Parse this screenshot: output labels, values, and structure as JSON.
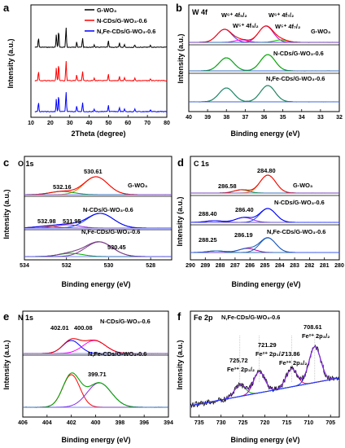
{
  "chart_data": [
    {
      "panel": "a",
      "type": "line",
      "xlabel": "2Theta (degree)",
      "ylabel": "Intensity (a.u.)",
      "xlim": [
        10,
        80
      ],
      "xticks": [
        "10",
        "20",
        "30",
        "40",
        "50",
        "60",
        "70",
        "80"
      ],
      "legend_position": "top-right",
      "series": [
        {
          "name": "G-WO₃",
          "color": "#000000",
          "peaks": [
            [
              13.9,
              0.45
            ],
            [
              23.1,
              0.62
            ],
            [
              24.3,
              0.82
            ],
            [
              28.1,
              0.95
            ],
            [
              33.6,
              0.28
            ],
            [
              36.6,
              0.45
            ],
            [
              42.6,
              0.12
            ],
            [
              49.9,
              0.32
            ],
            [
              55.6,
              0.2
            ],
            [
              58.2,
              0.14
            ],
            [
              63.5,
              0.12
            ],
            [
              71.6,
              0.1
            ]
          ]
        },
        {
          "name": "N-CDs/G-WO₃-0.6",
          "color": "#ff0000",
          "peaks": [
            [
              13.9,
              0.45
            ],
            [
              23.1,
              0.62
            ],
            [
              24.3,
              0.82
            ],
            [
              28.1,
              0.95
            ],
            [
              33.6,
              0.28
            ],
            [
              36.6,
              0.45
            ],
            [
              42.6,
              0.12
            ],
            [
              49.9,
              0.32
            ],
            [
              55.6,
              0.2
            ],
            [
              58.2,
              0.14
            ],
            [
              63.5,
              0.12
            ],
            [
              71.6,
              0.1
            ]
          ]
        },
        {
          "name": "N,Fe-CDs/G-WO₃-0.6",
          "color": "#0000ff",
          "peaks": [
            [
              13.9,
              0.45
            ],
            [
              23.1,
              0.62
            ],
            [
              24.3,
              0.82
            ],
            [
              28.1,
              0.95
            ],
            [
              33.6,
              0.28
            ],
            [
              36.6,
              0.45
            ],
            [
              42.6,
              0.12
            ],
            [
              49.9,
              0.32
            ],
            [
              55.6,
              0.2
            ],
            [
              58.2,
              0.14
            ],
            [
              63.5,
              0.12
            ],
            [
              71.6,
              0.1
            ]
          ]
        }
      ]
    },
    {
      "panel": "b",
      "type": "line",
      "title": "W 4f",
      "xlabel": "Binding energy (eV)",
      "ylabel": "Intensity (a.u.)",
      "xlim": [
        40,
        32
      ],
      "xticks": [
        "40",
        "39",
        "38",
        "37",
        "36",
        "35",
        "34",
        "33",
        "32"
      ],
      "sample_labels": [
        "G-WO₃",
        "N-CDs/G-WO₃-0.6",
        "N,Fe-CDs/G-WO₃-0.6"
      ],
      "peak_labels": [
        "W⁶⁺ 4f₅/₂",
        "W⁵⁺ 4f₅/₂",
        "W⁶⁺ 4f₇/₂",
        "W⁵⁺ 4f₇/₂"
      ],
      "peak_positions_eV": [
        38.1,
        37.2,
        35.9,
        35.1
      ]
    },
    {
      "panel": "c",
      "type": "line",
      "title": "O 1s",
      "xlabel": "Binding energy (eV)",
      "ylabel": "Intensity (a.u.)",
      "xlim": [
        534,
        527
      ],
      "xticks": [
        "534",
        "532",
        "530",
        "528"
      ],
      "sample_labels": [
        "G-WO₃",
        "N-CDs/G-WO₃-0.6",
        "N,Fe-CDs/G-WO₃-0.6"
      ],
      "peak_labels": [
        "530.61",
        "532.16",
        "532.98",
        "531.95",
        "530.45"
      ]
    },
    {
      "panel": "d",
      "type": "line",
      "title": "C 1s",
      "xlabel": "Binding energy (eV)",
      "ylabel": "Intensity (a.u.)",
      "xlim": [
        290,
        280
      ],
      "xticks": [
        "290",
        "289",
        "288",
        "287",
        "286",
        "285",
        "284",
        "283",
        "282",
        "281",
        "280"
      ],
      "sample_labels": [
        "G-WO₃",
        "N-CDs/G-WO₃-0.6",
        "N,Fe-CDs/G-WO₃-0.6"
      ],
      "peak_labels": [
        "284.80",
        "286.58",
        "288.40",
        "286.40",
        "288.25",
        "286.19"
      ]
    },
    {
      "panel": "e",
      "type": "line",
      "title": "N 1s",
      "xlabel": "Binding energy (eV)",
      "ylabel": "Intensity (a.u.)",
      "xlim": [
        406,
        394
      ],
      "xticks": [
        "406",
        "404",
        "402",
        "400",
        "398",
        "396",
        "394"
      ],
      "sample_labels": [
        "N-CDs/G-WO₃-0.6",
        "N,Fe-CDs/G-WO₃-0.6"
      ],
      "peak_labels": [
        "402.01",
        "400.08",
        "399.71"
      ]
    },
    {
      "panel": "f",
      "type": "line",
      "title": "Fe 2p",
      "xlabel": "Binding energy (eV)",
      "ylabel": "Intensity (a.u.)",
      "xlim": [
        737,
        703
      ],
      "xticks": [
        "735",
        "730",
        "725",
        "720",
        "715",
        "710",
        "705"
      ],
      "sample_labels": [
        "N,Fe-CDs/G-WO₃-0.6"
      ],
      "peak_labels": [
        "708.61",
        "721.29",
        "725.72",
        "713.86"
      ],
      "peak_species": [
        "Fe²⁺ 2p₃/₂",
        "Fe²⁺ 2p₁/₂",
        "Fe³⁺ 2p₁/₂",
        "Fe³⁺ 2p₃/₂"
      ]
    }
  ],
  "labels": {
    "panel_a": "a",
    "panel_b": "b",
    "panel_c": "c",
    "panel_d": "d",
    "panel_e": "e",
    "panel_f": "f",
    "xrd_xlabel": "2Theta (degree)",
    "be_xlabel": "Binding energy (eV)",
    "ylabel": "Intensity (a.u.)",
    "leg_g": "G-WO₃",
    "leg_n": "N-CDs/G-WO₃-0.6",
    "leg_nfe": "N,Fe-CDs/G-WO₃-0.6",
    "b_title": "W 4f",
    "b_w6_52": "W⁶⁺ 4f₅/₂",
    "b_w5_52": "W⁵⁺ 4f₅/₂",
    "b_w6_72": "W⁶⁺ 4f₇/₂",
    "b_w5_72": "W⁵⁺ 4f₇/₂",
    "b_g": "G-WO₃",
    "b_n": "N-CDs/G-WO₃-0.6",
    "b_nfe": "N,Fe-CDs/G-WO₃-0.6",
    "c_title": "O 1s",
    "c_53061": "530.61",
    "c_53216": "532.16",
    "c_g": "G-WO₃",
    "c_53298": "532.98",
    "c_53195": "531.95",
    "c_n": "N-CDs/G-WO₃-0.6",
    "c_nfe": "N,Fe-CDs/G-WO₃-0.6",
    "c_53045": "530.45",
    "d_title": "C 1s",
    "d_28480": "284.80",
    "d_28658": "286.58",
    "d_g": "G-WO₃",
    "d_28840": "288.40",
    "d_28640": "286.40",
    "d_n": "N-CDs/G-WO₃-0.6",
    "d_28825": "288.25",
    "d_28619": "286.19",
    "d_nfe": "N,Fe-CDs/G-WO₃-0.6",
    "e_title": "N 1s",
    "e_40201": "402.01",
    "e_40008": "400.08",
    "e_n": "N-CDs/G-WO₃-0.6",
    "e_nfe": "N,Fe-CDs/G-WO₃-0.6",
    "e_39971": "399.71",
    "f_title": "Fe 2p",
    "f_sample": "N,Fe-CDs/G-WO₃-0.6",
    "f_70861": "708.61",
    "f_fe2_32": "Fe²⁺ 2p₃/₂",
    "f_72129": "721.29",
    "f_fe2_12": "Fe²⁺ 2p₁/₂",
    "f_72572": "725.72",
    "f_fe3_12": "Fe³⁺ 2p₁/₂",
    "f_71386": "713.86",
    "f_fe3_32": "Fe³⁺ 2p₃/₂"
  }
}
